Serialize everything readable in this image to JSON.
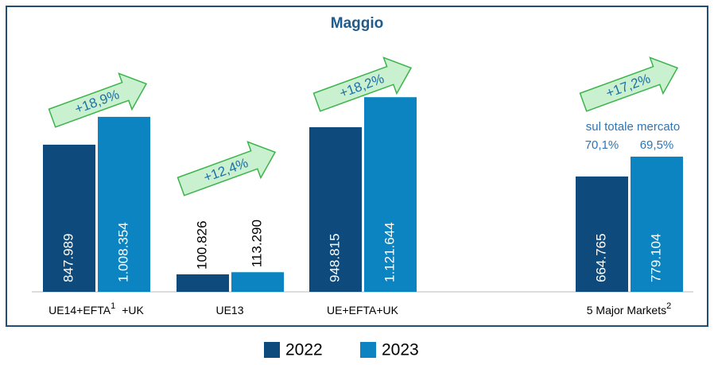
{
  "chart_data": {
    "type": "bar",
    "title": "Maggio",
    "categories": [
      "UE14+EFTA",
      "UE13",
      "UE+EFTA+UK",
      "5 Major Markets"
    ],
    "category_footnotes": [
      "1",
      null,
      null,
      "2"
    ],
    "category_suffixes": [
      "+UK",
      null,
      null,
      null
    ],
    "series": [
      {
        "name": "2022",
        "color": "#0e4a7b",
        "values": [
          847989,
          100826,
          948815,
          664765
        ],
        "value_labels": [
          "847.989",
          "100.826",
          "948.815",
          "664.765"
        ]
      },
      {
        "name": "2023",
        "color": "#0b84c1",
        "values": [
          1008354,
          113290,
          1121644,
          779104
        ],
        "value_labels": [
          "1.008.354",
          "113.290",
          "1.121.644",
          "779.104"
        ]
      }
    ],
    "growth_labels": [
      "+18,9%",
      "+12,4%",
      "+18,2%",
      "+17,2%"
    ],
    "share_note": {
      "title": "sul totale mercato",
      "labels": [
        "70,1%",
        "69,5%"
      ]
    },
    "ylim": [
      0,
      1535000
    ]
  }
}
